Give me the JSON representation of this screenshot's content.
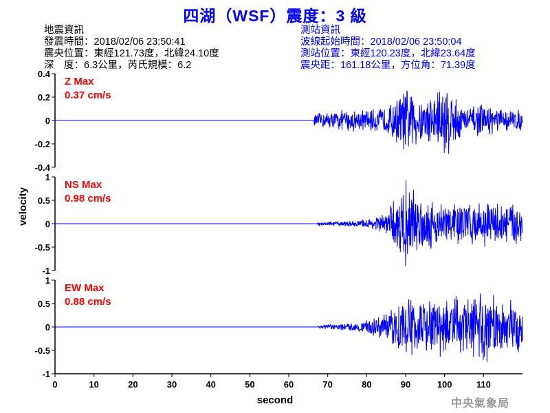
{
  "title": "四湖（WSF）震度：3 級",
  "quake_info": {
    "heading": "地震資訊",
    "lines": [
      "發震時間：2018/02/06 23:50:41",
      "震央位置：東經121.73度，北緯24.10度",
      "深　度：6.3公里，芮氏規模：6.2"
    ]
  },
  "station_info": {
    "heading": "測站資訊",
    "lines": [
      "波線起始時間：2018/02/06 23:50:04",
      "測站位置：東經120.23度，北緯23.64度",
      "震央距：161.18公里，方位角：71.39度"
    ]
  },
  "watermark": "中央氣象局",
  "colors": {
    "title": "#0000ff",
    "trace": "#0000ff",
    "max_label": "#ff0000",
    "station_info": "#0000ff"
  },
  "chart_data": {
    "type": "line",
    "xlabel": "second",
    "ylabel": "velocity",
    "xlim": [
      0,
      120
    ],
    "xticks": [
      "0",
      "10",
      "20",
      "30",
      "40",
      "50",
      "60",
      "70",
      "80",
      "90",
      "100",
      "110"
    ],
    "grid": false,
    "panels": [
      {
        "component": "Z",
        "max_label": "Z Max",
        "max_value": "0.37 cm/s",
        "ylim": [
          -0.4,
          0.4
        ],
        "yticks": [
          "0.4",
          "0.2",
          "0",
          "-0.2",
          "-0.4"
        ],
        "onset_s": 66.5,
        "envelope_start_s": 65,
        "envelope_step_s": 5,
        "envelope": [
          0.05,
          0.08,
          0.1,
          0.1,
          0.12,
          0.3,
          0.2,
          0.37,
          0.12,
          0.15,
          0.1
        ]
      },
      {
        "component": "NS",
        "max_label": "NS Max",
        "max_value": "0.98 cm/s",
        "ylim": [
          -1,
          1
        ],
        "yticks": [
          "1",
          "0.5",
          "0",
          "-0.5",
          "-1"
        ],
        "onset_s": 67.5,
        "envelope_start_s": 65,
        "envelope_step_s": 5,
        "envelope": [
          0.03,
          0.05,
          0.06,
          0.1,
          0.25,
          0.98,
          0.6,
          0.5,
          0.5,
          0.5,
          0.5
        ]
      },
      {
        "component": "EW",
        "max_label": "EW Max",
        "max_value": "0.88 cm/s",
        "ylim": [
          -1,
          1
        ],
        "yticks": [
          "1",
          "0.5",
          "0",
          "-0.5",
          "-1"
        ],
        "onset_s": 67.5,
        "envelope_start_s": 65,
        "envelope_step_s": 5,
        "envelope": [
          0.03,
          0.06,
          0.08,
          0.15,
          0.3,
          0.7,
          0.6,
          0.7,
          0.7,
          0.88,
          0.6
        ]
      }
    ]
  }
}
